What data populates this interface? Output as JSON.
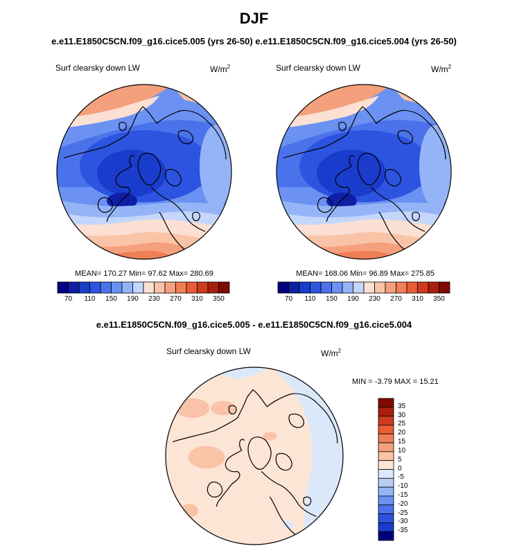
{
  "season": "DJF",
  "runs_title": "e.e11.E1850C5CN.f09_g16.cice5.005 (yrs 26-50)  e.e11.E1850C5CN.f09_g16.cice5.004 (yrs 26-50)",
  "diff_title": "e.e11.E1850C5CN.f09_g16.cice5.005 - e.e11.E1850C5CN.f09_g16.cice5.004",
  "panels": [
    {
      "label": "Surf clearsky down LW",
      "units_base": "W/m",
      "units_exp": "2",
      "stats": "MEAN= 170.27  Min=  97.62  Max= 280.69"
    },
    {
      "label": "Surf clearsky down LW",
      "units_base": "W/m",
      "units_exp": "2",
      "stats": "MEAN= 168.06  Min=  96.89  Max= 275.85"
    },
    {
      "label": "Surf clearsky down LW",
      "units_base": "W/m",
      "units_exp": "2",
      "stats": "MIN =  -3.79 MAX =  15.21"
    }
  ],
  "chart_data": [
    {
      "type": "heatmap",
      "projection": "north-polar-stereographic",
      "title": "Surf clearsky down LW",
      "units": "W/m2",
      "stats": {
        "mean": 170.27,
        "min": 97.62,
        "max": 280.69
      },
      "colorbar": {
        "orientation": "horizontal",
        "levels": [
          70,
          90,
          110,
          130,
          150,
          170,
          190,
          210,
          230,
          250,
          270,
          290,
          310,
          330,
          350
        ],
        "tick_labels": [
          "70",
          "110",
          "150",
          "190",
          "230",
          "270",
          "310",
          "350"
        ],
        "colors": [
          "#00007f",
          "#0e1fa6",
          "#1a3ccc",
          "#2c54e0",
          "#4a72eb",
          "#6b92f2",
          "#95b4f7",
          "#c4d6fb",
          "#fbe0d3",
          "#f9c3a7",
          "#f5a07c",
          "#f07e57",
          "#e85c36",
          "#cf3b1e",
          "#a8200d",
          "#7f0b00"
        ]
      }
    },
    {
      "type": "heatmap",
      "projection": "north-polar-stereographic",
      "title": "Surf clearsky down LW",
      "units": "W/m2",
      "stats": {
        "mean": 168.06,
        "min": 96.89,
        "max": 275.85
      },
      "colorbar": {
        "orientation": "horizontal",
        "levels": [
          70,
          90,
          110,
          130,
          150,
          170,
          190,
          210,
          230,
          250,
          270,
          290,
          310,
          330,
          350
        ],
        "tick_labels": [
          "70",
          "110",
          "150",
          "190",
          "230",
          "270",
          "310",
          "350"
        ],
        "colors": [
          "#00007f",
          "#0e1fa6",
          "#1a3ccc",
          "#2c54e0",
          "#4a72eb",
          "#6b92f2",
          "#95b4f7",
          "#c4d6fb",
          "#fbe0d3",
          "#f9c3a7",
          "#f5a07c",
          "#f07e57",
          "#e85c36",
          "#cf3b1e",
          "#a8200d",
          "#7f0b00"
        ]
      }
    },
    {
      "type": "heatmap",
      "projection": "north-polar-stereographic",
      "title": "Surf clearsky down LW",
      "units": "W/m2",
      "stats": {
        "min": -3.79,
        "max": 15.21
      },
      "colorbar": {
        "orientation": "vertical",
        "tick_labels": [
          "35",
          "30",
          "25",
          "20",
          "15",
          "10",
          "5",
          "0",
          "-5",
          "-10",
          "-15",
          "-20",
          "-25",
          "-30",
          "-35"
        ],
        "colors": [
          "#7f0b00",
          "#a8200d",
          "#cf3b1e",
          "#e85c36",
          "#f07e57",
          "#f5a07c",
          "#f9c3a7",
          "#fde5d6",
          "#dbe8fa",
          "#b7cef5",
          "#95b4f7",
          "#6b92f2",
          "#4a72eb",
          "#2c54e0",
          "#1a3ccc",
          "#00007f"
        ]
      }
    }
  ]
}
